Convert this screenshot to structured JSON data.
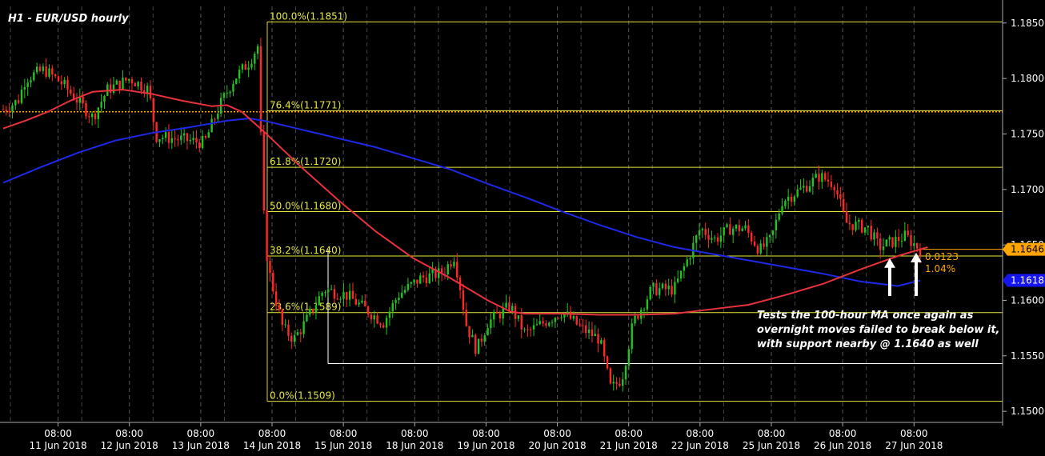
{
  "chart_data": {
    "type": "candlestick",
    "title": "H1 - EUR/USD hourly",
    "ylim": [
      1.149,
      1.1865
    ],
    "y_ticks": [
      1.185,
      1.18,
      1.175,
      1.17,
      1.165,
      1.16,
      1.155,
      1.15
    ],
    "y_tick_labels": [
      "1.1850",
      "1.1800",
      "1.1750",
      "1.1700",
      "1.1650",
      "1.1600",
      "1.1550",
      "1.1500"
    ],
    "days": [
      "11 Jun 2018",
      "12 Jun 2018",
      "13 Jun 2018",
      "14 Jun 2018",
      "15 Jun 2018",
      "18 Jun 2018",
      "19 Jun 2018",
      "20 Jun 2018",
      "21 Jun 2018",
      "22 Jun 2018",
      "25 Jun 2018",
      "26 Jun 2018",
      "27 Jun 2018"
    ],
    "time_label": "08:00",
    "fib_levels": [
      {
        "label": "100.0%(1.1851)",
        "value": 1.1851
      },
      {
        "label": "76.4%(1.1771)",
        "value": 1.1771
      },
      {
        "label": "61.8%(1.1720)",
        "value": 1.172
      },
      {
        "label": "50.0%(1.1680)",
        "value": 1.168
      },
      {
        "label": "38.2%(1.1640)",
        "value": 1.164
      },
      {
        "label": "23.6%(1.1589)",
        "value": 1.1589
      },
      {
        "label": "0.0%(1.1509)",
        "value": 1.1509
      }
    ],
    "dotted_level": 1.177,
    "support_line": 1.1543,
    "price_tags": [
      {
        "label": "1.1646",
        "value": 1.1646,
        "color": "#ffa500"
      },
      {
        "label": "1.1618",
        "value": 1.1618,
        "color": "#1515f0"
      }
    ],
    "change_labels": [
      "0.0123",
      "1.04%"
    ],
    "annotation": [
      "Tests the 100-hour MA once again as",
      "overnight moves failed to break below it,",
      "with support nearby @ 1.1640 as well"
    ],
    "ma_100": {
      "color": "#e8323c",
      "t": [
        0,
        0.3,
        0.6,
        0.9,
        1.2,
        1.6,
        2.0,
        2.4,
        2.8,
        3.0,
        3.2,
        3.5,
        4.0,
        4.5,
        5.0,
        5.5,
        6.0,
        6.5,
        6.8,
        7.0,
        7.5,
        8.0,
        8.5,
        9.0,
        9.5,
        10.0,
        10.5,
        11.0,
        11.5,
        12.0,
        12.4
      ],
      "values": [
        1.1755,
        1.1762,
        1.177,
        1.178,
        1.1788,
        1.179,
        1.1786,
        1.178,
        1.1775,
        1.1776,
        1.177,
        1.1752,
        1.172,
        1.169,
        1.1662,
        1.1638,
        1.162,
        1.16,
        1.159,
        1.1588,
        1.1588,
        1.1587,
        1.1587,
        1.1588,
        1.1592,
        1.1596,
        1.1605,
        1.1615,
        1.1628,
        1.164,
        1.1648
      ]
    },
    "ma_200": {
      "color": "#1e28e6",
      "t": [
        0,
        0.5,
        1.0,
        1.5,
        2.0,
        2.5,
        3.0,
        3.3,
        3.5,
        4.0,
        4.5,
        5.0,
        5.5,
        6.0,
        6.5,
        7.0,
        7.5,
        8.0,
        8.5,
        9.0,
        9.5,
        10.0,
        10.5,
        11.0,
        11.5,
        12.0,
        12.3
      ],
      "values": [
        1.1706,
        1.172,
        1.1733,
        1.1744,
        1.1751,
        1.1756,
        1.1762,
        1.1764,
        1.1762,
        1.1754,
        1.1746,
        1.1738,
        1.1728,
        1.1718,
        1.1705,
        1.1693,
        1.168,
        1.1668,
        1.1657,
        1.1648,
        1.1642,
        1.1636,
        1.163,
        1.1624,
        1.1617,
        1.1613,
        1.1618
      ]
    },
    "candle_waypoints": [
      [
        0.0,
        1.1772
      ],
      [
        0.2,
        1.178
      ],
      [
        0.3,
        1.18
      ],
      [
        0.55,
        1.1808
      ],
      [
        0.8,
        1.1795
      ],
      [
        1.0,
        1.178
      ],
      [
        1.2,
        1.1765
      ],
      [
        1.4,
        1.179
      ],
      [
        1.7,
        1.18
      ],
      [
        1.95,
        1.179
      ],
      [
        2.05,
        1.1748
      ],
      [
        2.4,
        1.1745
      ],
      [
        2.7,
        1.1742
      ],
      [
        2.9,
        1.1775
      ],
      [
        3.1,
        1.18
      ],
      [
        3.3,
        1.1815
      ],
      [
        3.42,
        1.183
      ],
      [
        3.48,
        1.169
      ],
      [
        3.55,
        1.163
      ],
      [
        3.75,
        1.1575
      ],
      [
        3.9,
        1.1565
      ],
      [
        4.05,
        1.158
      ],
      [
        4.3,
        1.161
      ],
      [
        4.6,
        1.1605
      ],
      [
        4.9,
        1.159
      ],
      [
        5.1,
        1.158
      ],
      [
        5.3,
        1.1605
      ],
      [
        5.6,
        1.162
      ],
      [
        5.9,
        1.1625
      ],
      [
        6.05,
        1.164
      ],
      [
        6.15,
        1.1605
      ],
      [
        6.2,
        1.158
      ],
      [
        6.35,
        1.1555
      ],
      [
        6.5,
        1.158
      ],
      [
        6.8,
        1.1595
      ],
      [
        7.0,
        1.157
      ],
      [
        7.2,
        1.1578
      ],
      [
        7.5,
        1.159
      ],
      [
        7.75,
        1.1575
      ],
      [
        8.0,
        1.1565
      ],
      [
        8.15,
        1.152
      ],
      [
        8.3,
        1.153
      ],
      [
        8.45,
        1.158
      ],
      [
        8.7,
        1.161
      ],
      [
        9.0,
        1.161
      ],
      [
        9.2,
        1.164
      ],
      [
        9.35,
        1.1665
      ],
      [
        9.55,
        1.1655
      ],
      [
        9.75,
        1.1665
      ],
      [
        9.95,
        1.1665
      ],
      [
        10.15,
        1.1645
      ],
      [
        10.3,
        1.1655
      ],
      [
        10.45,
        1.169
      ],
      [
        10.7,
        1.17
      ],
      [
        10.95,
        1.1712
      ],
      [
        11.15,
        1.1705
      ],
      [
        11.3,
        1.167
      ],
      [
        11.6,
        1.1665
      ],
      [
        11.75,
        1.1648
      ],
      [
        11.9,
        1.1652
      ],
      [
        12.1,
        1.1658
      ],
      [
        12.3,
        1.1646
      ]
    ]
  }
}
